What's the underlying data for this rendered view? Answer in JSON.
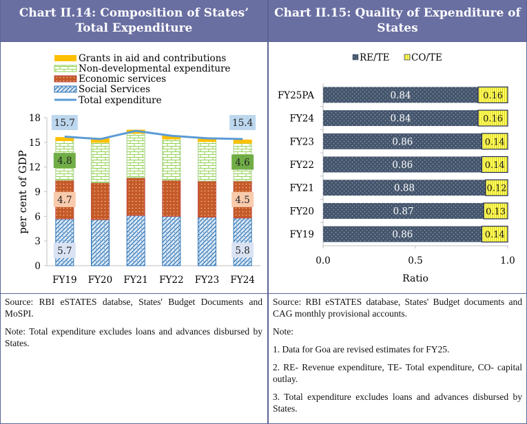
{
  "left_panel": {
    "title": "Chart II.14: Composition of States’ Total Expenditure",
    "source": "Source:  RBI  eSTATES  databse,  States'  Budget Documents and MoSPI.",
    "note": "Note: Total expenditure excludes loans and advances disbursed by States."
  },
  "right_panel": {
    "title": "Chart II.15: Quality of Expenditure of States",
    "source": "Source:  RBI  eSTATES  database,  States'  Budget documents and CAG monthly provisional accounts.",
    "note_heading": "Note:",
    "notes": [
      "1. Data for Goa are revised estimates for FY25.",
      "2. RE- Revenue expenditure, TE- Total expenditure, CO- capital outlay.",
      "3. Total expenditure excludes loans and advances disbursed by States."
    ]
  },
  "colors": {
    "header_bg": "#6a6fa2",
    "social": "#2e75b6",
    "economic": "#c0504d",
    "nondev": "#92d050",
    "grants": "#ffc000",
    "total_line": "#5b9bd5",
    "re_te": "#44546a",
    "co_te": "#ffff66"
  },
  "chart_data": [
    {
      "type": "bar",
      "stacked": true,
      "title": "Chart II.14: Composition of States’ Total Expenditure",
      "xlabel": "",
      "ylabel": "per cent of GDP",
      "ylim": [
        0,
        18
      ],
      "yticks": [
        0,
        3,
        6,
        9,
        12,
        15,
        18
      ],
      "ytick_labels": [
        "0",
        "3",
        "6",
        "9",
        "12",
        "15",
        "18"
      ],
      "categories": [
        "FY19",
        "FY20",
        "FY21",
        "FY22",
        "FY23",
        "FY24"
      ],
      "legend_position": "top",
      "series": [
        {
          "name": "Social Services",
          "kind": "bar",
          "values": [
            5.7,
            5.6,
            6.1,
            6.0,
            5.9,
            5.8
          ],
          "labels": [
            "5.7",
            null,
            null,
            null,
            null,
            "5.8"
          ]
        },
        {
          "name": "Economic services",
          "kind": "bar",
          "values": [
            4.7,
            4.5,
            4.6,
            4.4,
            4.4,
            4.5
          ],
          "labels": [
            "4.7",
            null,
            null,
            null,
            null,
            "4.5"
          ]
        },
        {
          "name": "Non-developmental expenditure",
          "kind": "bar",
          "values": [
            4.8,
            4.9,
            5.4,
            5.0,
            4.8,
            4.6
          ],
          "labels": [
            "4.8",
            null,
            null,
            null,
            null,
            "4.6"
          ]
        },
        {
          "name": "Grants in aid and contributions",
          "kind": "bar",
          "values": [
            0.4,
            0.5,
            0.4,
            0.4,
            0.3,
            0.4
          ]
        },
        {
          "name": "Total expenditure",
          "kind": "line",
          "values": [
            15.7,
            15.4,
            16.4,
            15.8,
            15.5,
            15.4
          ],
          "labels": [
            "15.7",
            null,
            null,
            null,
            null,
            "15.4"
          ]
        }
      ],
      "legend": [
        "Grants in aid and contributions",
        "Non-developmental expenditure",
        "Economic services",
        "Social Services",
        "Total expenditure"
      ]
    },
    {
      "type": "bar",
      "orientation": "horizontal",
      "stacked": true,
      "title": "Chart II.15: Quality of Expenditure of States",
      "xlabel": "Ratio",
      "ylabel": "",
      "xlim": [
        0.0,
        1.0
      ],
      "xticks": [
        0.0,
        0.5,
        1.0
      ],
      "xtick_labels": [
        "0.0",
        "0.5",
        "1.0"
      ],
      "categories": [
        "FY25PA",
        "FY24",
        "FY23",
        "FY22",
        "FY21",
        "FY20",
        "FY19"
      ],
      "legend_position": "top",
      "legend": [
        "RE/TE",
        "CO/TE"
      ],
      "series": [
        {
          "name": "RE/TE",
          "values": [
            0.84,
            0.84,
            0.86,
            0.86,
            0.88,
            0.87,
            0.86
          ],
          "labels": [
            "0.84",
            "0.84",
            "0.86",
            "0.86",
            "0.88",
            "0.87",
            "0.86"
          ]
        },
        {
          "name": "CO/TE",
          "values": [
            0.16,
            0.16,
            0.14,
            0.14,
            0.12,
            0.13,
            0.14
          ],
          "labels": [
            "0.16",
            "0.16",
            "0.14",
            "0.14",
            "0.12",
            "0.13",
            "0.14"
          ]
        }
      ]
    }
  ]
}
